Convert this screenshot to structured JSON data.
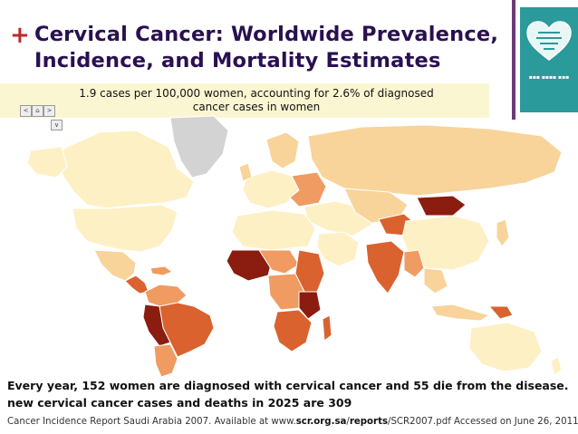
{
  "slide": {
    "plus_mark": "+",
    "title_line1": "Cervical Cancer: Worldwide Prevalence,",
    "title_line2": "Incidence, and Mortality Estimates"
  },
  "highlight": {
    "line1": "1.9 cases per 100,000 women, accounting for 2.6% of diagnosed",
    "line2": "cancer cases in women"
  },
  "map_nav": {
    "left": "<",
    "home": "⌂",
    "right": ">",
    "zoom": "∨"
  },
  "colors": {
    "title": "#2a1050",
    "plus": "#c0292b",
    "band": "#fbf6d2",
    "accent_bar": "#6b3a7a",
    "logo_bg": "#2a9a9b",
    "no_data": "#d3d3d3",
    "very_low": "#fdf0c4",
    "low": "#f8d49a",
    "medium": "#ef9b62",
    "high": "#d9622f",
    "very_high": "#8a1c10"
  },
  "footer": {
    "statement_line1": "Every year, 152 women are diagnosed with cervical cancer and 55 die from the disease.",
    "statement_line2": "new cervical cancer cases and deaths in 2025 are 309",
    "source_pre": "Cancer Incidence Report Saudi Arabia 2007. Available at www.",
    "source_bold1": "scr.org.sa",
    "source_mid": "/",
    "source_bold2": "reports",
    "source_post": "/SCR2007.pdf Accessed on June 26, 2011"
  }
}
